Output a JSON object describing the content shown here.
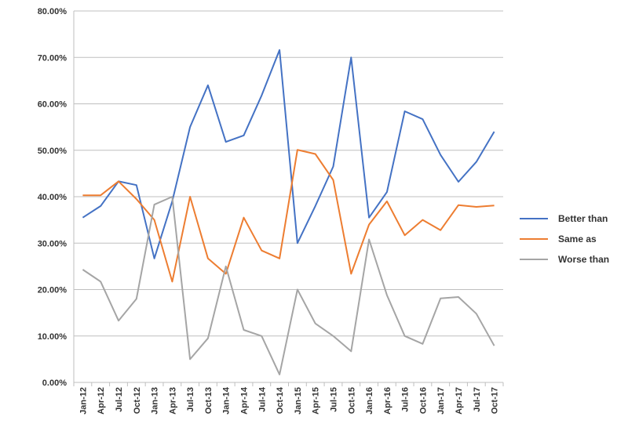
{
  "chart_data": {
    "type": "line",
    "x": [
      "Jan-12",
      "Apr-12",
      "Jul-12",
      "Oct-12",
      "Jan-13",
      "Apr-13",
      "Jul-13",
      "Oct-13",
      "Jan-14",
      "Apr-14",
      "Jul-14",
      "Oct-14",
      "Jan-15",
      "Apr-15",
      "Jul-15",
      "Oct-15",
      "Jan-16",
      "Apr-16",
      "Jul-16",
      "Oct-16",
      "Jan-17",
      "Apr-17",
      "Jul-17",
      "Oct-17"
    ],
    "y_ticks": [
      "0.00%",
      "10.00%",
      "20.00%",
      "30.00%",
      "40.00%",
      "50.00%",
      "60.00%",
      "70.00%",
      "80.00%"
    ],
    "ylim": [
      0,
      80
    ],
    "grid": true,
    "legend_position": "right",
    "series": [
      {
        "name": "Better than",
        "color": "#4472c4",
        "values": [
          35.5,
          38,
          43.3,
          42.5,
          26.7,
          39,
          55,
          64,
          51.8,
          53.2,
          61.8,
          71.6,
          30,
          38,
          46.5,
          70,
          35.5,
          41,
          58.4,
          56.7,
          49,
          43.2,
          47.5,
          54
        ]
      },
      {
        "name": "Same as",
        "color": "#ed7d31",
        "values": [
          40.3,
          40.3,
          43.3,
          39.5,
          35,
          21.7,
          40,
          26.7,
          23.4,
          35.5,
          28.4,
          26.7,
          50.1,
          49.2,
          43.6,
          23.4,
          34,
          39,
          31.7,
          35,
          32.8,
          38.2,
          37.8,
          38.1
        ]
      },
      {
        "name": "Worse than",
        "color": "#a5a5a5",
        "values": [
          24.3,
          21.7,
          13.3,
          18,
          38.3,
          40,
          5,
          9.5,
          25,
          11.3,
          10,
          1.7,
          20,
          12.7,
          10,
          6.7,
          30.8,
          18.8,
          10,
          8.3,
          18.1,
          18.4,
          14.8,
          7.9
        ]
      }
    ]
  }
}
